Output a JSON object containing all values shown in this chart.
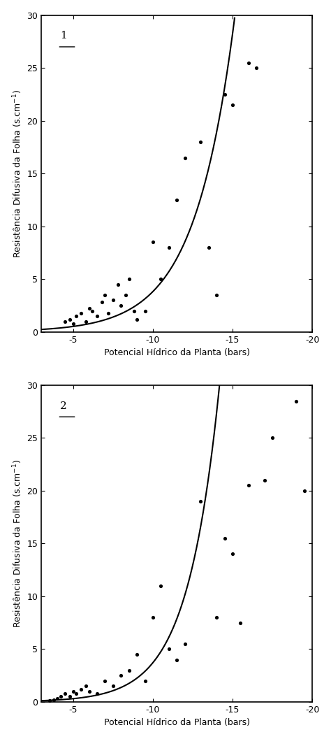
{
  "plot1": {
    "label": "1",
    "scatter_x": [
      -4.5,
      -4.8,
      -5.0,
      -5.2,
      -5.5,
      -5.8,
      -6.0,
      -6.2,
      -6.5,
      -6.8,
      -7.0,
      -7.2,
      -7.5,
      -7.8,
      -8.0,
      -8.3,
      -8.5,
      -8.8,
      -9.0,
      -9.5,
      -10.0,
      -10.5,
      -11.0,
      -11.5,
      -12.0,
      -13.0,
      -13.5,
      -14.0,
      -14.5,
      -15.0,
      -16.0,
      -16.5
    ],
    "scatter_y": [
      1.0,
      1.2,
      0.8,
      1.5,
      1.8,
      1.0,
      2.2,
      2.0,
      1.5,
      2.8,
      3.5,
      1.8,
      3.0,
      4.5,
      2.5,
      3.5,
      5.0,
      2.0,
      1.2,
      2.0,
      8.5,
      5.0,
      8.0,
      12.5,
      16.5,
      18.0,
      8.0,
      3.5,
      22.5,
      21.5,
      25.5,
      25.0
    ],
    "curve_a": 0.07,
    "curve_b": 0.4,
    "xlim_left": -3,
    "xlim_right": -20,
    "ylim": [
      0,
      30
    ],
    "xticks": [
      -5,
      -10,
      -15,
      -20
    ],
    "yticks": [
      0,
      5,
      10,
      15,
      20,
      25,
      30
    ]
  },
  "plot2": {
    "label": "2",
    "scatter_x": [
      -3.5,
      -3.8,
      -4.0,
      -4.2,
      -4.5,
      -4.8,
      -5.0,
      -5.2,
      -5.5,
      -5.8,
      -6.0,
      -6.5,
      -7.0,
      -7.5,
      -8.0,
      -8.5,
      -9.0,
      -9.5,
      -10.0,
      -10.5,
      -11.0,
      -11.5,
      -12.0,
      -13.0,
      -14.0,
      -14.5,
      -15.0,
      -15.5,
      -16.0,
      -17.0,
      -17.5,
      -19.0,
      -19.5
    ],
    "scatter_y": [
      0.1,
      0.2,
      0.3,
      0.5,
      0.8,
      0.5,
      1.0,
      0.8,
      1.2,
      1.5,
      1.0,
      0.8,
      2.0,
      1.5,
      2.5,
      3.0,
      4.5,
      2.0,
      8.0,
      11.0,
      5.0,
      4.0,
      5.5,
      19.0,
      8.0,
      15.5,
      14.0,
      7.5,
      20.5,
      21.0,
      25.0,
      28.5,
      20.0
    ],
    "curve_a": 0.025,
    "curve_b": 0.5,
    "xlim_left": -3,
    "xlim_right": -20,
    "ylim": [
      0,
      30
    ],
    "xticks": [
      -5,
      -10,
      -15,
      -20
    ],
    "yticks": [
      0,
      5,
      10,
      15,
      20,
      25,
      30
    ]
  },
  "ylabel": "Resistência Difusiva da Folha (s.cm$^{-1}$)",
  "xlabel": "Potencial Hídrico da Planta (bars)",
  "bg_color": "#ffffff",
  "line_color": "#000000",
  "scatter_color": "#000000",
  "font_size_label": 9,
  "font_size_tick": 9,
  "font_size_annot": 11
}
